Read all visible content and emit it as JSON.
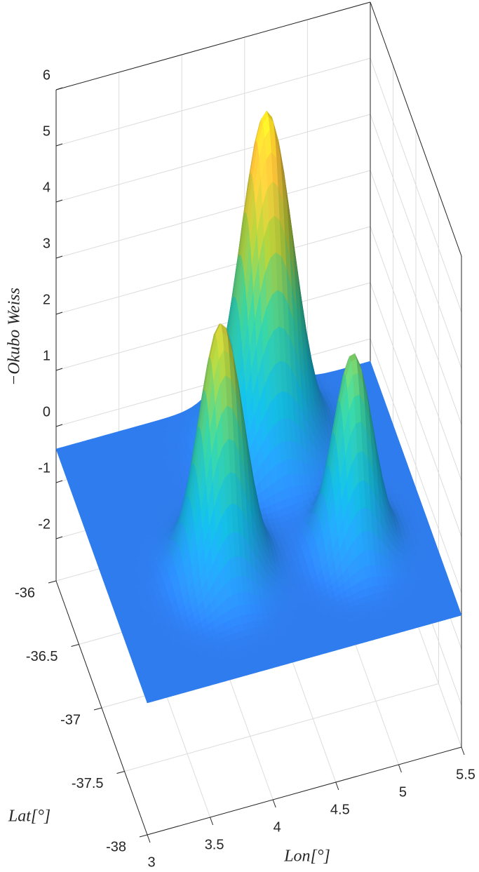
{
  "chart_data": {
    "type": "surface",
    "zlabel": "−Okubo Weiss",
    "ylabel": "Lat[°]",
    "xlabel": "Lon[°]",
    "xlim": [
      3,
      5.5
    ],
    "xticks": [
      3,
      3.5,
      4,
      4.5,
      5,
      5.5
    ],
    "ylim": [
      -38,
      -36
    ],
    "yticks": [
      -38,
      -37.5,
      -37,
      -36.5,
      -36
    ],
    "zlim": [
      -2.75,
      6
    ],
    "zticks": [
      -2,
      -1,
      0,
      1,
      2,
      3,
      4,
      5,
      6
    ],
    "colormap": "parula",
    "grid": true,
    "surface": {
      "base": -0.4,
      "peaks": [
        {
          "x": 4.54,
          "y": -36.38,
          "z": 5.5,
          "sigma": 0.2
        },
        {
          "x": 3.88,
          "y": -37.2,
          "z": 4,
          "sigma": 0.17
        },
        {
          "x": 4.9,
          "y": -37.28,
          "z": 3,
          "sigma": 0.15
        }
      ]
    }
  }
}
